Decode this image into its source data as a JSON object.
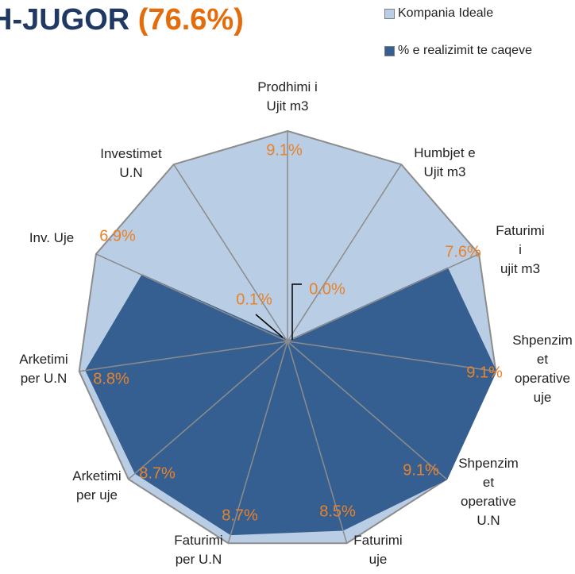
{
  "chart_data": {
    "type": "radar",
    "title": "H-JUGOR",
    "title_value": "(76.6%)",
    "categories": [
      "Prodhimi i\nUjit m3",
      "Humbjet e\nUjit m3",
      "Faturimi i\nujit m3",
      "Shpenzim\net\noperative\nuje",
      "Shpenzim\net\noperative\nU.N",
      "Faturimi\nuje",
      "Faturimi\nper U.N",
      "Arketimi\nper uje",
      "Arketimi\nper U.N",
      "Inv. Uje",
      "Investimet\nU.N"
    ],
    "series": [
      {
        "name": "Kompania Ideale",
        "color": "#b9cde5",
        "values": [
          9.1,
          9.1,
          9.1,
          9.1,
          9.1,
          9.1,
          9.1,
          9.1,
          9.1,
          9.1,
          9.1
        ],
        "value_labels": [
          "9.1%",
          null,
          null,
          null,
          null,
          null,
          null,
          null,
          null,
          null,
          null
        ]
      },
      {
        "name": "% e realizimit te caqeve",
        "color": "#365f91",
        "values": [
          0.0,
          0.0,
          7.6,
          9.1,
          9.1,
          8.5,
          8.7,
          8.7,
          8.8,
          6.9,
          0.1
        ],
        "value_labels": [
          "0.0%",
          null,
          "7.6%",
          "9.1%",
          "9.1%",
          "8.5%",
          "8.7%",
          "8.7%",
          "8.8%",
          "6.9%",
          "0.1%"
        ]
      }
    ],
    "rlim": [
      0,
      9.1
    ]
  }
}
